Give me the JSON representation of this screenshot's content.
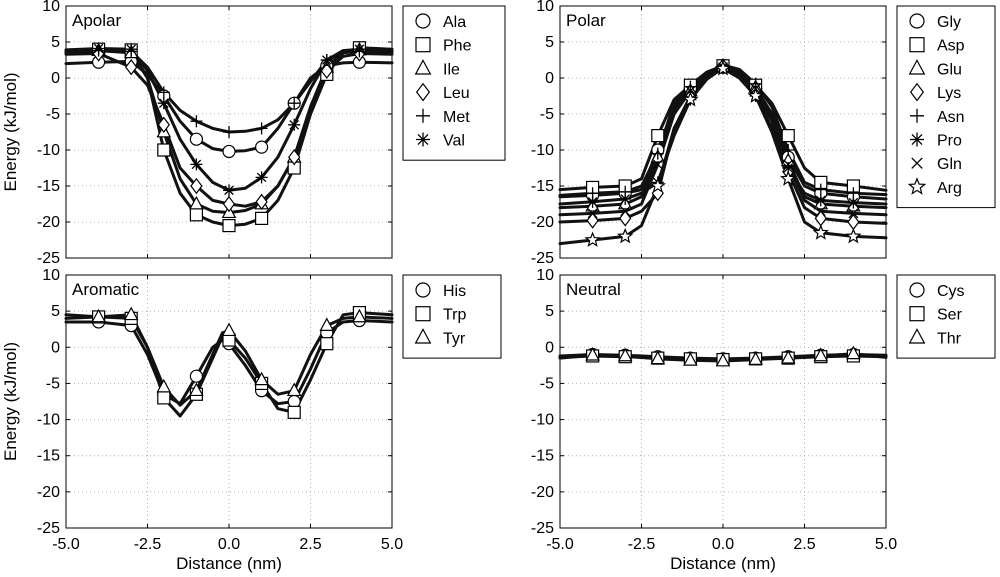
{
  "figure": {
    "ylabel": "Energy (kJ/mol)",
    "xlabel": "Distance (nm)"
  },
  "chart_data": [
    {
      "type": "line",
      "title": "Apolar",
      "xlabel": "",
      "ylabel": "Energy (kJ/mol)",
      "xlim": [
        -5,
        5
      ],
      "ylim": [
        -25,
        10
      ],
      "xticks": [
        "",
        "",
        "",
        "",
        ""
      ],
      "yticks": [
        "10",
        "5",
        "0",
        "-5",
        "-10",
        "-15",
        "-20",
        "-25"
      ],
      "grid": true,
      "legend": "outside-right",
      "series": [
        {
          "name": "Ala",
          "marker": "circle",
          "x": [
            -5,
            -4,
            -3,
            -2.5,
            -2,
            -1.5,
            -1,
            -0.5,
            0,
            0.5,
            1,
            1.5,
            2,
            2.5,
            3,
            3.5,
            4,
            5
          ],
          "y": [
            2,
            2.2,
            2.3,
            0.5,
            -2.5,
            -6,
            -8.5,
            -9.8,
            -10.2,
            -10.1,
            -9.6,
            -7,
            -3.5,
            0,
            1.7,
            2.1,
            2.2,
            2.1
          ]
        },
        {
          "name": "Phe",
          "marker": "square",
          "x": [
            -5,
            -4,
            -3,
            -2.5,
            -2,
            -1.5,
            -1,
            -0.5,
            0,
            0.5,
            1,
            1.5,
            2,
            2.5,
            3,
            3.5,
            4,
            5
          ],
          "y": [
            3.8,
            4,
            3.9,
            0,
            -10,
            -16,
            -19,
            -20,
            -20.5,
            -20.3,
            -19.5,
            -17,
            -12.5,
            -5,
            0.5,
            3.5,
            4.2,
            4
          ]
        },
        {
          "name": "Ile",
          "marker": "triangle",
          "x": [
            -5,
            -4,
            -3,
            -2.5,
            -2,
            -1.5,
            -1,
            -0.5,
            0,
            0.5,
            1,
            1.5,
            2,
            2.5,
            3,
            3.5,
            4,
            5
          ],
          "y": [
            3.6,
            3.8,
            3.5,
            0,
            -7.5,
            -14,
            -17.5,
            -18.5,
            -18.7,
            -18.4,
            -17.5,
            -15,
            -11,
            -4,
            1.5,
            3.6,
            3.9,
            3.7
          ]
        },
        {
          "name": "Leu",
          "marker": "diamond",
          "x": [
            -5,
            -4,
            -3,
            -2.5,
            -2,
            -1.5,
            -1,
            -0.5,
            0,
            0.5,
            1,
            1.5,
            2,
            2.5,
            3,
            3.5,
            4,
            5
          ],
          "y": [
            3.3,
            3.4,
            1.5,
            -1,
            -6.5,
            -12.5,
            -15,
            -17,
            -17.5,
            -17.8,
            -17.2,
            -15,
            -11,
            -5,
            1,
            3,
            3.4,
            3.3
          ]
        },
        {
          "name": "Met",
          "marker": "plus",
          "x": [
            -5,
            -4,
            -3,
            -2.5,
            -2,
            -1.5,
            -1,
            -0.5,
            0,
            0.5,
            1,
            1.5,
            2,
            2.5,
            3,
            3.5,
            4,
            5
          ],
          "y": [
            3.5,
            3.8,
            3.7,
            1.5,
            -2,
            -4.5,
            -6,
            -7,
            -7.5,
            -7.4,
            -7,
            -5.8,
            -3.5,
            -0.5,
            2.5,
            3.5,
            3.7,
            3.6
          ]
        },
        {
          "name": "Val",
          "marker": "asterisk",
          "x": [
            -5,
            -4,
            -3,
            -2.5,
            -2,
            -1.5,
            -1,
            -0.5,
            0,
            0.5,
            1,
            1.5,
            2,
            2.5,
            3,
            3.5,
            4,
            5
          ],
          "y": [
            3.9,
            4.1,
            4,
            1,
            -3.5,
            -8.5,
            -12,
            -14.5,
            -15.6,
            -15.3,
            -13.8,
            -11,
            -6.5,
            -1.5,
            2.5,
            3.8,
            4,
            3.9
          ]
        }
      ]
    },
    {
      "type": "line",
      "title": "Polar",
      "xlabel": "",
      "ylabel": "",
      "xlim": [
        -5,
        5
      ],
      "ylim": [
        -25,
        10
      ],
      "xticks": [
        "",
        "",
        "",
        "",
        ""
      ],
      "yticks": [
        "10",
        "5",
        "0",
        "-5",
        "-10",
        "-15",
        "-20",
        "-25"
      ],
      "grid": true,
      "legend": "outside-right",
      "series": [
        {
          "name": "Gly",
          "marker": "circle",
          "x": [
            -5,
            -4,
            -3,
            -2.5,
            -2,
            -1.5,
            -1,
            -0.5,
            0,
            0.5,
            1,
            1.5,
            2,
            2.5,
            3,
            4,
            5
          ],
          "y": [
            -16.5,
            -16.3,
            -16,
            -15.5,
            -10,
            -4,
            -1.5,
            0.5,
            1.5,
            0.8,
            -1.5,
            -5,
            -11,
            -15,
            -16,
            -16.5,
            -16.8
          ]
        },
        {
          "name": "Asp",
          "marker": "square",
          "x": [
            -5,
            -4,
            -3,
            -2.5,
            -2,
            -1.5,
            -1,
            -0.5,
            0,
            0.5,
            1,
            1.5,
            2,
            2.5,
            3,
            4,
            5
          ],
          "y": [
            -15.5,
            -15.2,
            -15,
            -14,
            -8,
            -3,
            -1,
            0.8,
            1.7,
            1,
            -1,
            -3.5,
            -8,
            -12.5,
            -14.5,
            -15,
            -15.6
          ]
        },
        {
          "name": "Glu",
          "marker": "triangle",
          "x": [
            -5,
            -4,
            -3,
            -2.5,
            -2,
            -1.5,
            -1,
            -0.5,
            0,
            0.5,
            1,
            1.5,
            2,
            2.5,
            3,
            4,
            5
          ],
          "y": [
            -18,
            -17.8,
            -17.5,
            -16.5,
            -11,
            -4.5,
            -1.8,
            0.3,
            1.6,
            0.9,
            -1.3,
            -5,
            -11.5,
            -16.5,
            -17.5,
            -17.8,
            -18
          ]
        },
        {
          "name": "Lys",
          "marker": "diamond",
          "x": [
            -5,
            -4,
            -3,
            -2.5,
            -2,
            -1.5,
            -1,
            -0.5,
            0,
            0.5,
            1,
            1.5,
            2,
            2.5,
            3,
            4,
            5
          ],
          "y": [
            -20,
            -19.8,
            -19.5,
            -18.5,
            -16,
            -7,
            -2.5,
            0,
            1.6,
            0.5,
            -2,
            -6,
            -13,
            -18,
            -19.5,
            -20,
            -20.2
          ]
        },
        {
          "name": "Asn",
          "marker": "plus",
          "x": [
            -5,
            -4,
            -3,
            -2.5,
            -2,
            -1.5,
            -1,
            -0.5,
            0,
            0.5,
            1,
            1.5,
            2,
            2.5,
            3,
            4,
            5
          ],
          "y": [
            -16.3,
            -16,
            -15.8,
            -15,
            -10.5,
            -3.5,
            -1.2,
            0.6,
            1.8,
            1.2,
            -0.8,
            -4,
            -10,
            -14.5,
            -15.5,
            -16,
            -16.2
          ]
        },
        {
          "name": "Pro",
          "marker": "asterisk",
          "x": [
            -5,
            -4,
            -3,
            -2.5,
            -2,
            -1.5,
            -1,
            -0.5,
            0,
            0.5,
            1,
            1.5,
            2,
            2.5,
            3,
            4,
            5
          ],
          "y": [
            -17.5,
            -17.2,
            -16.8,
            -16,
            -14.5,
            -8,
            -3,
            -0.2,
            1.4,
            0.2,
            -2.5,
            -7,
            -12.5,
            -16,
            -17,
            -17.3,
            -17.5
          ]
        },
        {
          "name": "Gln",
          "marker": "cross",
          "x": [
            -5,
            -4,
            -3,
            -2.5,
            -2,
            -1.5,
            -1,
            -0.5,
            0,
            0.5,
            1,
            1.5,
            2,
            2.5,
            3,
            4,
            5
          ],
          "y": [
            -19,
            -18.8,
            -18.5,
            -17.5,
            -12,
            -5,
            -1.8,
            0.4,
            1.5,
            0.8,
            -1.5,
            -5.5,
            -12,
            -17,
            -18.5,
            -18.8,
            -19
          ]
        },
        {
          "name": "Arg",
          "marker": "star",
          "x": [
            -5,
            -4,
            -3,
            -2.5,
            -2,
            -1.5,
            -1,
            -0.5,
            0,
            0.5,
            1,
            1.5,
            2,
            2.5,
            3,
            4,
            5
          ],
          "y": [
            -23,
            -22.5,
            -22,
            -20.5,
            -15,
            -7,
            -3,
            0,
            1.3,
            0,
            -2.5,
            -7.5,
            -14,
            -20,
            -21.5,
            -22,
            -22.2
          ]
        }
      ]
    },
    {
      "type": "line",
      "title": "Aromatic",
      "xlabel": "Distance (nm)",
      "ylabel": "Energy (kJ/mol)",
      "xlim": [
        -5,
        5
      ],
      "ylim": [
        -25,
        10
      ],
      "xticks": [
        "-5.0",
        "-2.5",
        "0.0",
        "2.5",
        "5.0"
      ],
      "yticks": [
        "10",
        "5",
        "0",
        "-5",
        "-10",
        "-15",
        "-20",
        "-25"
      ],
      "grid": true,
      "legend": "outside-right",
      "series": [
        {
          "name": "His",
          "marker": "circle",
          "x": [
            -5,
            -4,
            -3,
            -2.5,
            -2,
            -1.5,
            -1,
            -0.5,
            -0.2,
            0,
            0.5,
            1,
            1.5,
            2,
            2.5,
            3,
            3.5,
            4,
            5
          ],
          "y": [
            3.5,
            3.5,
            3,
            -1,
            -6.5,
            -7.8,
            -4,
            0,
            1,
            0.5,
            -2.5,
            -6,
            -7.8,
            -7.5,
            -3,
            2,
            3.5,
            3.7,
            3.5
          ]
        },
        {
          "name": "Trp",
          "marker": "square",
          "x": [
            -5,
            -4,
            -3,
            -2.5,
            -2,
            -1.5,
            -1,
            -0.5,
            -0.2,
            0,
            0.5,
            1,
            1.5,
            2,
            2.5,
            3,
            3.5,
            4,
            5
          ],
          "y": [
            4.5,
            4.2,
            4,
            0,
            -7,
            -9.5,
            -6.5,
            -1.5,
            1.5,
            1,
            -1.5,
            -5,
            -8.5,
            -9,
            -4.5,
            0.5,
            4.5,
            4.8,
            4.5
          ]
        },
        {
          "name": "Tyr",
          "marker": "triangle",
          "x": [
            -5,
            -4,
            -3,
            -2.5,
            -2,
            -1.5,
            -1,
            -0.5,
            -0.2,
            0,
            0.5,
            1,
            1.5,
            2,
            2.5,
            3,
            3.5,
            4,
            5
          ],
          "y": [
            4,
            4.2,
            4.5,
            0,
            -5.5,
            -8,
            -6,
            -1,
            2,
            2.3,
            -0.5,
            -4.5,
            -6.5,
            -6,
            -1,
            3,
            4,
            4.2,
            4
          ]
        }
      ]
    },
    {
      "type": "line",
      "title": "Neutral",
      "xlabel": "Distance (nm)",
      "ylabel": "",
      "xlim": [
        -5,
        5
      ],
      "ylim": [
        -25,
        10
      ],
      "xticks": [
        "-5.0",
        "-2.5",
        "0.0",
        "2.5",
        "5.0"
      ],
      "yticks": [
        "10",
        "5",
        "0",
        "-5",
        "-10",
        "-15",
        "-20",
        "-25"
      ],
      "grid": true,
      "legend": "outside-right",
      "series": [
        {
          "name": "Cys",
          "marker": "circle",
          "x": [
            -5,
            -4,
            -3,
            -2,
            -1,
            0,
            1,
            2,
            3,
            4,
            5
          ],
          "y": [
            -1.2,
            -1,
            -1.1,
            -1.3,
            -1.5,
            -1.6,
            -1.5,
            -1.3,
            -1.1,
            -1,
            -1.1
          ]
        },
        {
          "name": "Ser",
          "marker": "square",
          "x": [
            -5,
            -4,
            -3,
            -2,
            -1,
            0,
            1,
            2,
            3,
            4,
            5
          ],
          "y": [
            -1.4,
            -1.2,
            -1.3,
            -1.5,
            -1.6,
            -1.7,
            -1.6,
            -1.5,
            -1.3,
            -1.2,
            -1.3
          ]
        },
        {
          "name": "Thr",
          "marker": "triangle",
          "x": [
            -5,
            -4,
            -3,
            -2,
            -1,
            0,
            1,
            2,
            3,
            4,
            5
          ],
          "y": [
            -1.5,
            -1.1,
            -1.2,
            -1.6,
            -1.8,
            -1.9,
            -1.7,
            -1.5,
            -1.2,
            -0.9,
            -1.4
          ]
        }
      ]
    }
  ]
}
